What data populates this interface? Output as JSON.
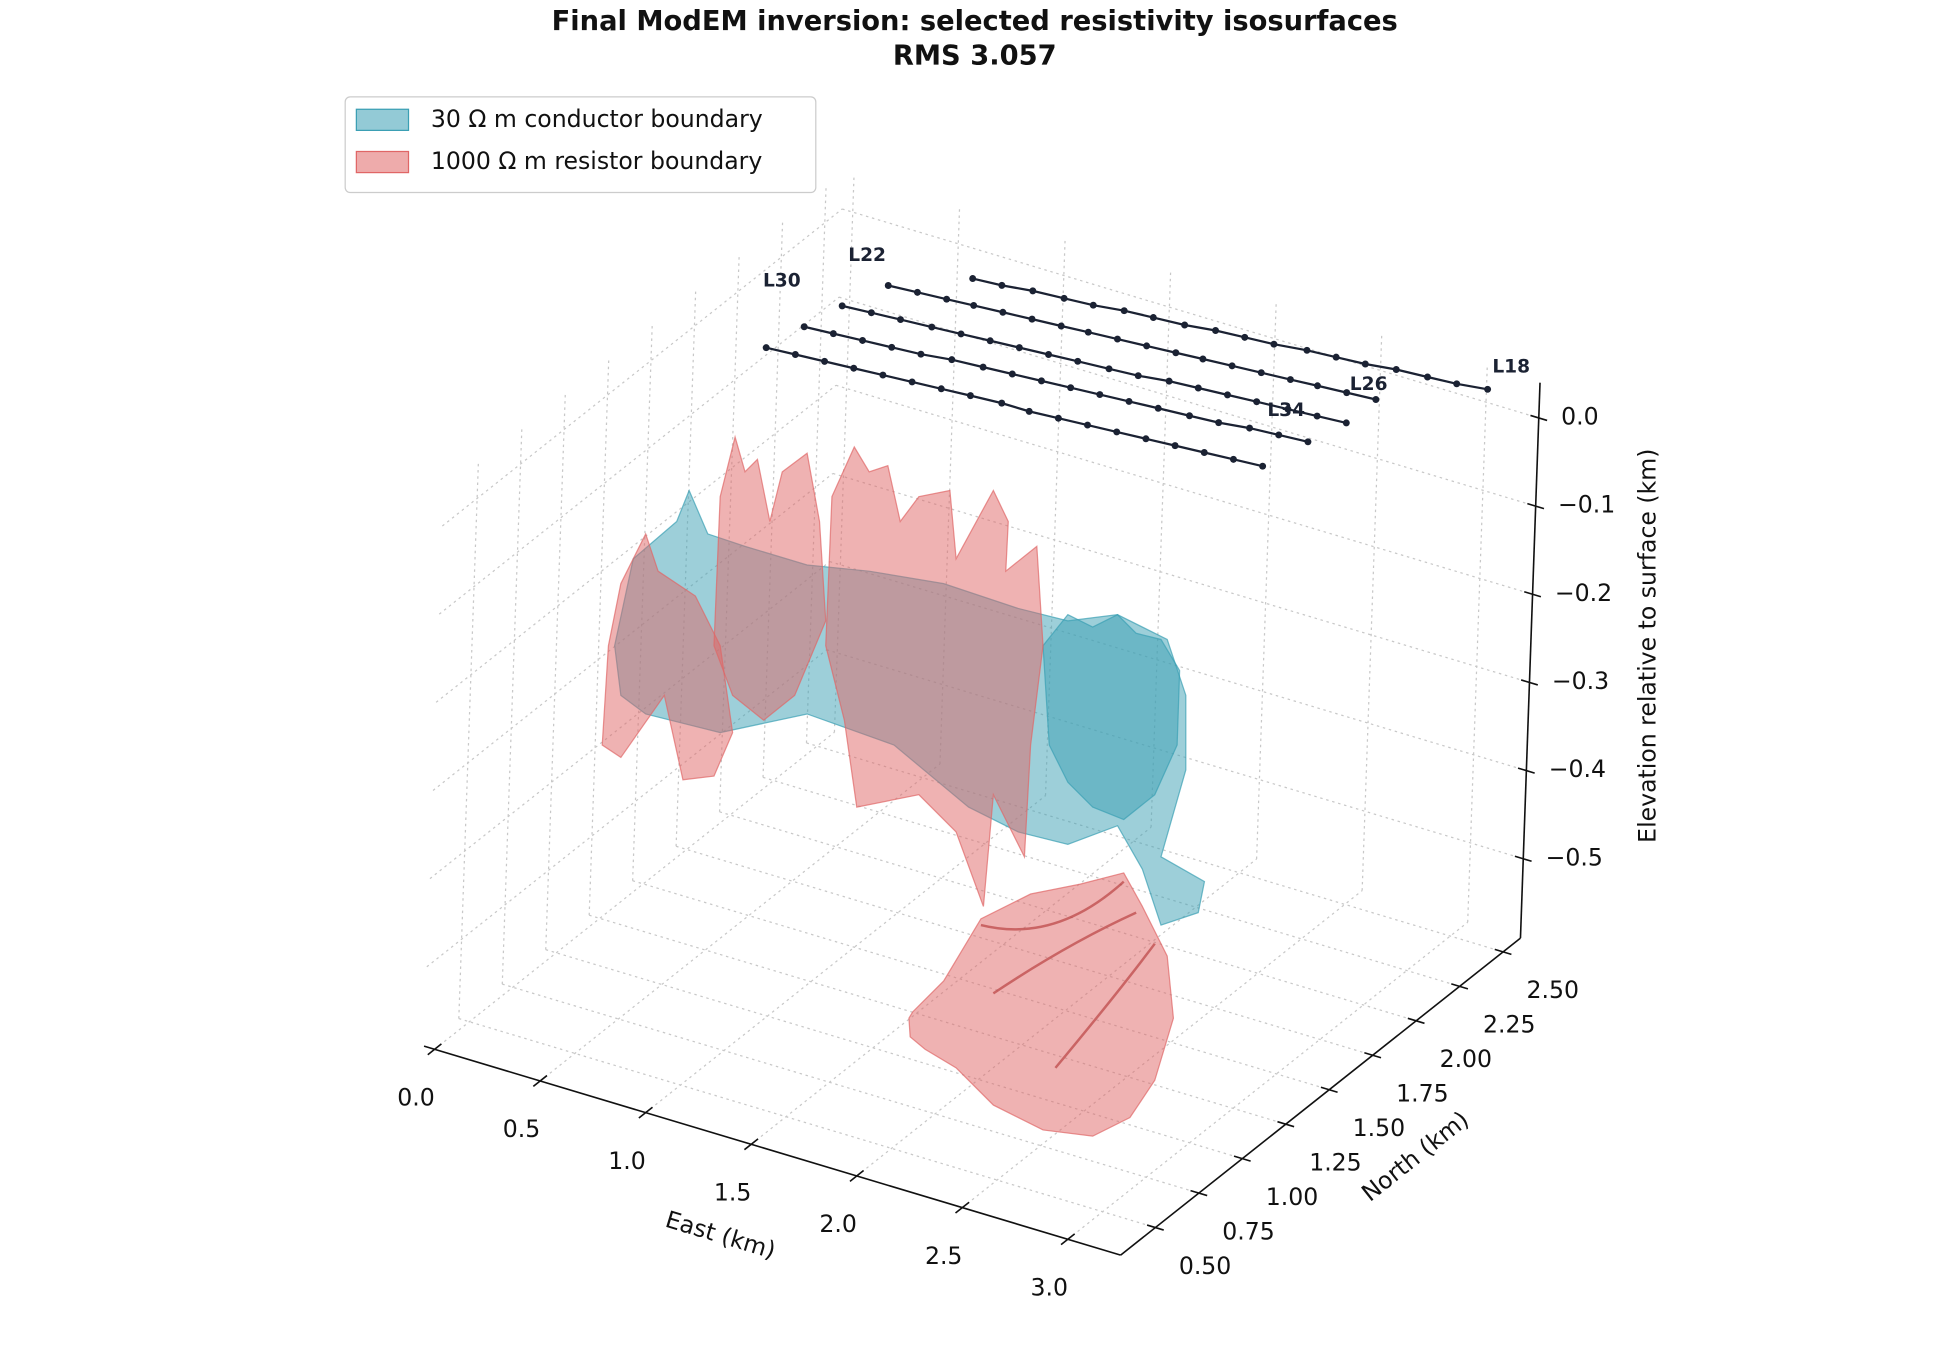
{
  "chart_data": {
    "type": "surface3d",
    "title": "Final ModEM inversion: selected resistivity isosurfaces",
    "subtitle": "RMS 3.057",
    "xlabel": "East (km)",
    "ylabel": "North (km)",
    "zlabel": "Elevation relative to surface (km)",
    "xlim": [
      -0.05,
      3.25
    ],
    "ylim": [
      0.3,
      2.6
    ],
    "zlim": [
      -0.59,
      0.04
    ],
    "xticks": [
      {
        "value": 0,
        "label": "0.0"
      },
      0.5,
      {
        "value": 1,
        "label": "1.0"
      },
      1.5,
      {
        "value": 2,
        "label": "2.0"
      },
      2.5,
      {
        "value": 3,
        "label": "3.0"
      }
    ],
    "yticks": [
      {
        "value": 0.5,
        "label": "0.50"
      },
      0.75,
      {
        "value": 1,
        "label": "1.00"
      },
      1.25,
      {
        "value": 1.5,
        "label": "1.50"
      },
      1.75,
      {
        "value": 2,
        "label": "2.00"
      },
      2.25,
      {
        "value": 2.5,
        "label": "2.50"
      }
    ],
    "zticks": [
      {
        "value": 0,
        "label": "0.0"
      },
      {
        "value": -0.1,
        "label": "−0.1"
      },
      {
        "value": -0.2,
        "label": "−0.2"
      },
      {
        "value": -0.3,
        "label": "−0.3"
      },
      {
        "value": -0.4,
        "label": "−0.4"
      },
      {
        "value": -0.5,
        "label": "−0.5"
      }
    ],
    "grid": true,
    "legend": "upper left",
    "isosurfaces": [
      {
        "name": "30 Ω m conductor boundary",
        "color": "#3b9fb4"
      },
      {
        "name": "1000 Ω m resistor boundary",
        "color": "#e06666"
      }
    ],
    "survey_lines": {
      "color": "#1b2233",
      "elevation": 0,
      "series": [
        {
          "name": "L18",
          "east": [
            0.7,
            0.83,
            0.96,
            1.1,
            1.23,
            1.36,
            1.49,
            1.63,
            1.76,
            1.89,
            2.02,
            2.16,
            2.29,
            2.42,
            2.55,
            2.69,
            2.82,
            2.95
          ],
          "north": [
            2.44,
            2.45,
            2.47,
            2.48,
            2.49,
            2.51,
            2.52,
            2.53,
            2.55,
            2.56,
            2.57,
            2.59,
            2.6,
            2.61,
            2.63,
            2.64,
            2.65,
            2.67
          ]
        },
        {
          "name": "L22",
          "east": [
            0.44,
            0.57,
            0.7,
            0.82,
            0.95,
            1.08,
            1.21,
            1.33,
            1.46,
            1.59,
            1.72,
            1.84,
            1.97,
            2.1,
            2.23,
            2.35,
            2.48,
            2.61
          ],
          "north": [
            2.27,
            2.28,
            2.29,
            2.3,
            2.31,
            2.32,
            2.33,
            2.34,
            2.35,
            2.36,
            2.37,
            2.38,
            2.39,
            2.4,
            2.41,
            2.42,
            2.43,
            2.44
          ]
        },
        {
          "name": "L26",
          "east": [
            0.37,
            0.5,
            0.63,
            0.77,
            0.9,
            1.03,
            1.16,
            1.29,
            1.42,
            1.56,
            1.69,
            1.82,
            1.95,
            2.08,
            2.21,
            2.35,
            2.48,
            2.61
          ],
          "north": [
            2.09,
            2.1,
            2.11,
            2.12,
            2.13,
            2.14,
            2.15,
            2.16,
            2.17,
            2.18,
            2.19,
            2.21,
            2.22,
            2.23,
            2.24,
            2.25,
            2.26,
            2.27
          ]
        },
        {
          "name": "L30",
          "east": [
            0.33,
            0.46,
            0.59,
            0.72,
            0.85,
            0.98,
            1.12,
            1.25,
            1.38,
            1.51,
            1.64,
            1.77,
            1.9,
            2.04,
            2.17,
            2.3,
            2.43,
            2.56
          ],
          "north": [
            1.92,
            1.93,
            1.94,
            1.95,
            1.96,
            1.98,
            1.99,
            2.0,
            2.01,
            2.02,
            2.03,
            2.04,
            2.05,
            2.06,
            2.07,
            2.09,
            2.1,
            2.11
          ]
        },
        {
          "name": "L34",
          "east": [
            0.29,
            0.42,
            0.55,
            0.68,
            0.81,
            0.94,
            1.07,
            1.2,
            1.34,
            1.47,
            1.6,
            1.73,
            1.86,
            1.99,
            2.12,
            2.25,
            2.38,
            2.51
          ],
          "north": [
            1.75,
            1.76,
            1.77,
            1.78,
            1.79,
            1.8,
            1.81,
            1.82,
            1.83,
            1.83,
            1.84,
            1.85,
            1.86,
            1.87,
            1.88,
            1.89,
            1.9,
            1.91
          ]
        }
      ]
    }
  }
}
